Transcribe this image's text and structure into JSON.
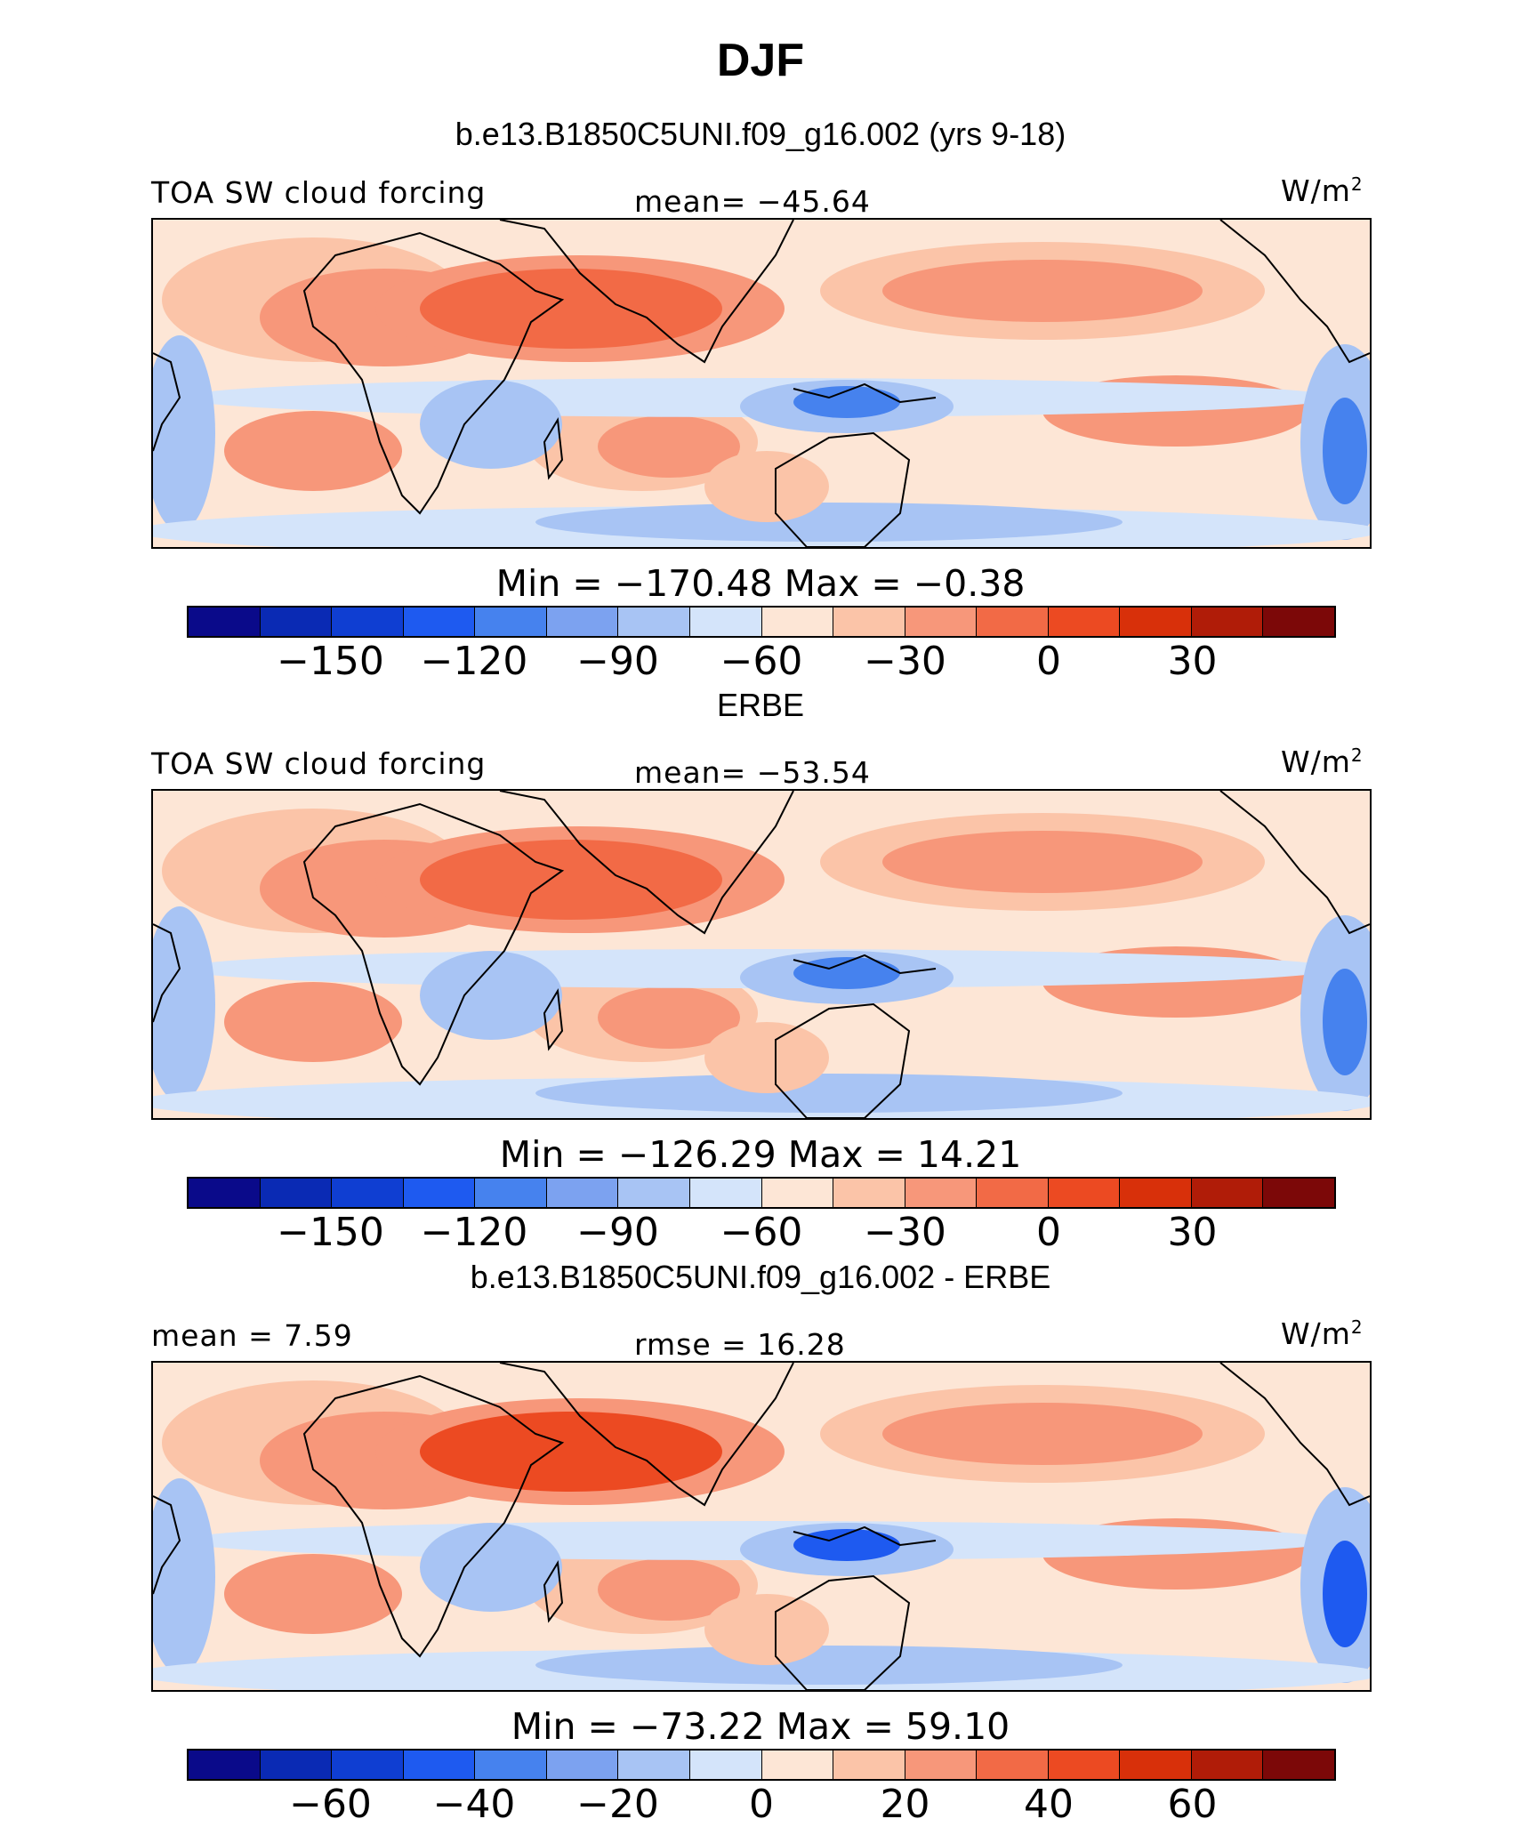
{
  "title": "DJF",
  "palette": [
    "#0a0a8a",
    "#0a2ab4",
    "#0f3ed2",
    "#1e5af0",
    "#4682ee",
    "#7ca2f0",
    "#a8c4f4",
    "#d4e4fa",
    "#fde6d6",
    "#fbc4a8",
    "#f7977a",
    "#f26a46",
    "#ec4a22",
    "#d8300a",
    "#b01c08",
    "#7c0808"
  ],
  "panels": [
    {
      "title": "b.e13.B1850C5UNI.f09_g16.002 (yrs 9-18)",
      "left_label": "TOA SW cloud forcing",
      "center_label": "mean= −45.64",
      "unit": "W/m",
      "unit_sup": "2",
      "minmax": "Min  =  −170.48  Max  =    −0.38",
      "ticks": [
        "−150",
        "−120",
        "−90",
        "−60",
        "−30",
        "0",
        "30"
      ],
      "map_colors": {
        "base": "#fde6d6",
        "strong_pos": "#f26a46",
        "mid_pos": "#f7977a",
        "light_pos": "#fbc4a8",
        "light_neg": "#d4e4fa",
        "mid_neg": "#a8c4f4",
        "strong_neg": "#4682ee"
      }
    },
    {
      "title": "ERBE",
      "left_label": "TOA SW cloud forcing",
      "center_label": "mean= −53.54",
      "unit": "W/m",
      "unit_sup": "2",
      "minmax": "Min  =  −126.29  Max  =    14.21",
      "ticks": [
        "−150",
        "−120",
        "−90",
        "−60",
        "−30",
        "0",
        "30"
      ],
      "map_colors": {
        "base": "#fde6d6",
        "strong_pos": "#f26a46",
        "mid_pos": "#f7977a",
        "light_pos": "#fbc4a8",
        "light_neg": "#d4e4fa",
        "mid_neg": "#a8c4f4",
        "strong_neg": "#4682ee"
      }
    },
    {
      "title": "b.e13.B1850C5UNI.f09_g16.002 - ERBE",
      "left_label": "mean =   7.59",
      "center_label": "rmse  =   16.28",
      "unit": "W/m",
      "unit_sup": "2",
      "minmax": "Min  =  −73.22  Max  =    59.10",
      "ticks": [
        "−60",
        "−40",
        "−20",
        "0",
        "20",
        "40",
        "60"
      ],
      "map_colors": {
        "base": "#fde6d6",
        "strong_pos": "#ec4a22",
        "mid_pos": "#f7977a",
        "light_pos": "#fbc4a8",
        "light_neg": "#d4e4fa",
        "mid_neg": "#a8c4f4",
        "strong_neg": "#1e5af0"
      }
    }
  ]
}
